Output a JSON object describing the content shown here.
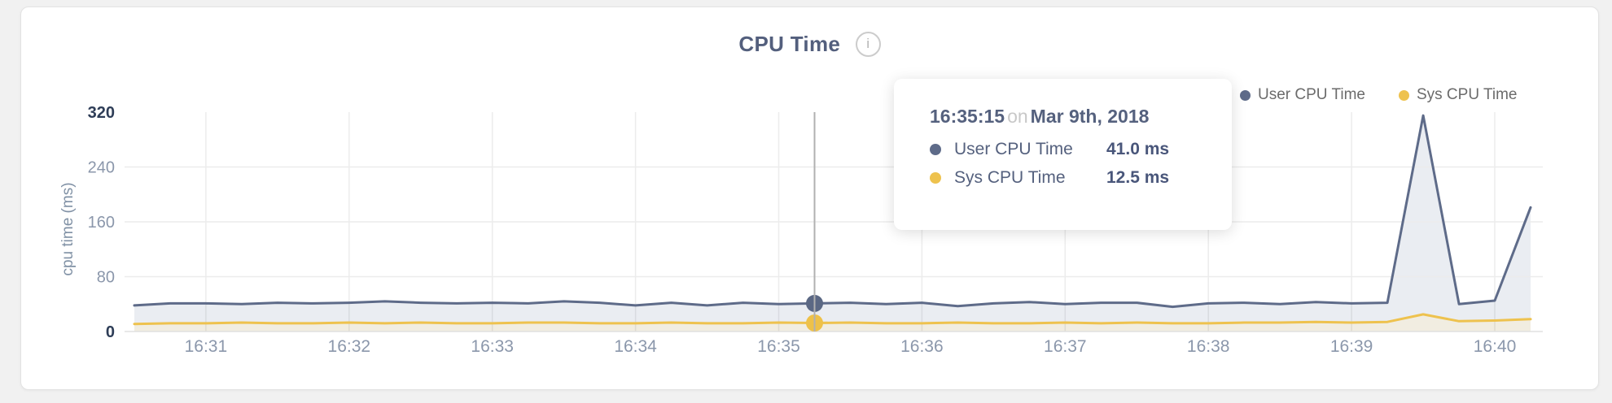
{
  "card": {
    "title": "CPU Time",
    "info_icon": "i"
  },
  "legend": {
    "items": [
      {
        "label": "User CPU Time",
        "color": "#5e6b89"
      },
      {
        "label": "Sys CPU Time",
        "color": "#eec24e"
      }
    ]
  },
  "tooltip": {
    "time": "16:35:15",
    "on_word": "on",
    "date": "Mar 9th, 2018",
    "rows": [
      {
        "label": "User CPU Time",
        "value": "41.0 ms",
        "color": "#5e6b89"
      },
      {
        "label": "Sys CPU Time",
        "value": "12.5 ms",
        "color": "#eec24e"
      }
    ]
  },
  "chart_data": {
    "type": "area",
    "title": "CPU Time",
    "xlabel": "",
    "ylabel": "cpu time (ms)",
    "ylim": [
      0,
      320
    ],
    "yticks": [
      0,
      80,
      160,
      240,
      320
    ],
    "x_minute_ticks": [
      "16:31",
      "16:32",
      "16:33",
      "16:34",
      "16:35",
      "16:36",
      "16:37",
      "16:38",
      "16:39",
      "16:40"
    ],
    "grid": true,
    "legend_position": "top-right",
    "highlight_index": 19,
    "categories": [
      "16:30:30",
      "16:30:45",
      "16:31:00",
      "16:31:15",
      "16:31:30",
      "16:31:45",
      "16:32:00",
      "16:32:15",
      "16:32:30",
      "16:32:45",
      "16:33:00",
      "16:33:15",
      "16:33:30",
      "16:33:45",
      "16:34:00",
      "16:34:15",
      "16:34:30",
      "16:34:45",
      "16:35:00",
      "16:35:15",
      "16:35:30",
      "16:35:45",
      "16:36:00",
      "16:36:15",
      "16:36:30",
      "16:36:45",
      "16:37:00",
      "16:37:15",
      "16:37:30",
      "16:37:45",
      "16:38:00",
      "16:38:15",
      "16:38:30",
      "16:38:45",
      "16:39:00",
      "16:39:15",
      "16:39:30",
      "16:39:45",
      "16:40:00",
      "16:40:15"
    ],
    "series": [
      {
        "name": "User CPU Time",
        "color": "#5e6b89",
        "fill": "#eaedf2",
        "values": [
          38,
          41,
          41,
          40,
          42,
          41,
          42,
          44,
          42,
          41,
          42,
          41,
          44,
          42,
          38,
          42,
          38,
          42,
          40,
          41,
          42,
          40,
          42,
          37,
          41,
          43,
          40,
          42,
          42,
          36,
          41,
          42,
          40,
          43,
          41,
          42,
          315,
          40,
          45,
          181
        ]
      },
      {
        "name": "Sys CPU Time",
        "color": "#eec24e",
        "fill": "#f1ede1",
        "values": [
          11,
          12,
          12,
          13,
          12,
          12,
          13,
          12,
          13,
          12,
          12,
          13,
          13,
          12,
          12,
          13,
          12,
          12,
          13,
          12.5,
          13,
          12,
          12,
          13,
          12,
          12,
          13,
          12,
          13,
          12,
          12,
          13,
          13,
          14,
          13,
          14,
          25,
          15,
          16,
          18
        ]
      }
    ]
  }
}
